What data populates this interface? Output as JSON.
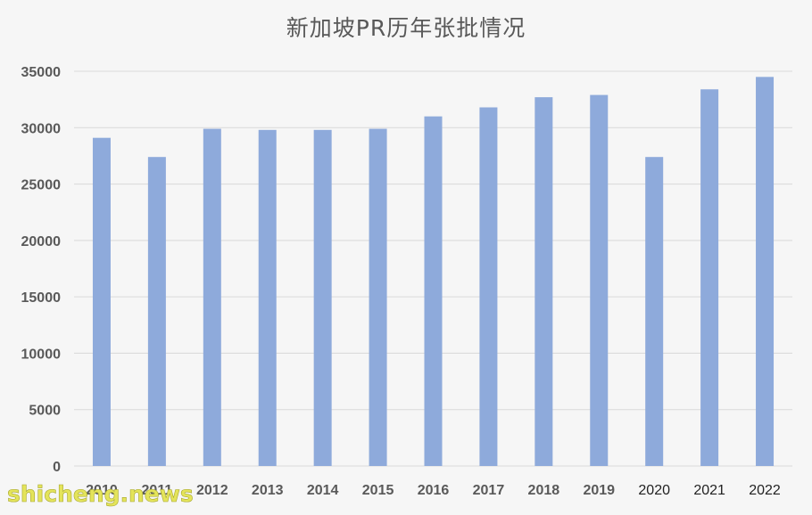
{
  "chart_data": {
    "type": "bar",
    "title": "新加坡PR历年张批情况",
    "xlabel": "",
    "ylabel": "",
    "categories": [
      "2010",
      "2011",
      "2012",
      "2013",
      "2014",
      "2015",
      "2016",
      "2017",
      "2018",
      "2019",
      "2020",
      "2021",
      "2022"
    ],
    "values": [
      29100,
      27400,
      29900,
      29800,
      29800,
      29900,
      31000,
      31800,
      32700,
      32900,
      27400,
      33400,
      34500
    ],
    "ylim": [
      0,
      35000
    ],
    "yticks": [
      "0",
      "5000",
      "10000",
      "15000",
      "20000",
      "25000",
      "30000",
      "35000"
    ],
    "grid": true,
    "legend": "none",
    "colors": {
      "bar": "#8eaadb",
      "grid": "#d9d9d9",
      "text": "#595959"
    }
  },
  "watermark": "shicheng.news"
}
